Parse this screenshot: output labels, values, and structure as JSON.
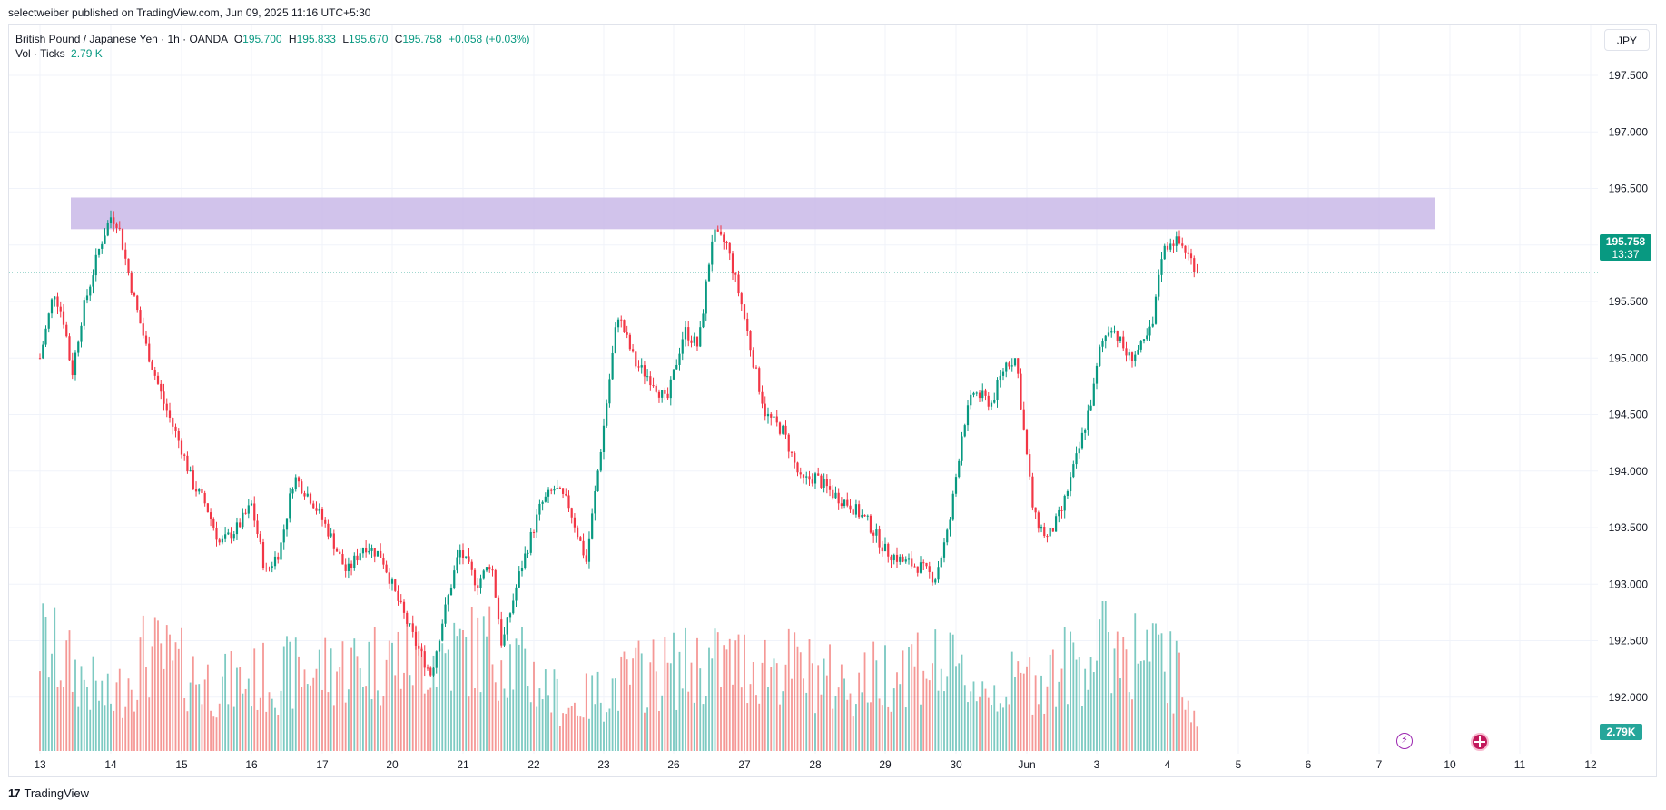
{
  "header": {
    "publish_text": "selectweiber published on TradingView.com, Jun 09, 2025 11:16 UTC+5:30"
  },
  "legend": {
    "symbol": "British Pound / Japanese Yen · 1h · OANDA",
    "o_label": "O",
    "o_value": "195.700",
    "h_label": "H",
    "h_value": "195.833",
    "l_label": "L",
    "l_value": "195.670",
    "c_label": "C",
    "c_value": "195.758",
    "change": "+0.058 (+0.03%)",
    "vol_label": "Vol · Ticks",
    "vol_value": "2.79 K"
  },
  "currency_button": "JPY",
  "price_tag": {
    "price": "195.758",
    "countdown": "13:37"
  },
  "volume_tag": "2.79K",
  "brand": {
    "logo_text": "17",
    "name": "TradingView"
  },
  "colors": {
    "up": "#089981",
    "down": "#f23645",
    "vol_up": "#26a69a",
    "vol_down": "#ef5350",
    "zone": "#c9b8e8"
  },
  "icons": [
    "lightning-event-icon",
    "uk-flag-event-icon"
  ],
  "chart_data": {
    "type": "candlestick",
    "title": "",
    "y_axis": {
      "ticks": [
        192.0,
        192.5,
        193.0,
        193.5,
        194.0,
        194.5,
        195.0,
        195.5,
        196.0,
        196.5,
        197.0,
        197.5
      ],
      "range": [
        191.5,
        197.95
      ]
    },
    "x_axis": {
      "tick_labels": [
        "13",
        "14",
        "15",
        "16",
        "17",
        "20",
        "21",
        "22",
        "23",
        "26",
        "27",
        "28",
        "29",
        "30",
        "Jun",
        "3",
        "4",
        "5",
        "6",
        "7",
        "10",
        "11",
        "12"
      ]
    },
    "resistance_zone": {
      "low": 196.14,
      "high": 196.42,
      "from": "13",
      "to": "10"
    },
    "last_price": 195.758,
    "close_path": [
      {
        "x": 0,
        "y": 195.0
      },
      {
        "x": 0.2,
        "y": 195.6
      },
      {
        "x": 0.35,
        "y": 195.3
      },
      {
        "x": 0.45,
        "y": 194.85
      },
      {
        "x": 0.6,
        "y": 195.4
      },
      {
        "x": 0.85,
        "y": 196.0
      },
      {
        "x": 1.0,
        "y": 196.25
      },
      {
        "x": 1.1,
        "y": 196.2
      },
      {
        "x": 1.3,
        "y": 195.6
      },
      {
        "x": 1.5,
        "y": 195.1
      },
      {
        "x": 1.75,
        "y": 194.6
      },
      {
        "x": 2.0,
        "y": 194.2
      },
      {
        "x": 2.15,
        "y": 193.9
      },
      {
        "x": 2.35,
        "y": 193.7
      },
      {
        "x": 2.55,
        "y": 193.35
      },
      {
        "x": 2.8,
        "y": 193.5
      },
      {
        "x": 3.0,
        "y": 193.7
      },
      {
        "x": 3.2,
        "y": 193.1
      },
      {
        "x": 3.4,
        "y": 193.3
      },
      {
        "x": 3.6,
        "y": 193.95
      },
      {
        "x": 3.85,
        "y": 193.75
      },
      {
        "x": 4.1,
        "y": 193.45
      },
      {
        "x": 4.35,
        "y": 193.1
      },
      {
        "x": 4.6,
        "y": 193.35
      },
      {
        "x": 4.85,
        "y": 193.25
      },
      {
        "x": 5.05,
        "y": 192.9
      },
      {
        "x": 5.35,
        "y": 192.45
      },
      {
        "x": 5.55,
        "y": 192.2
      },
      {
        "x": 5.7,
        "y": 192.65
      },
      {
        "x": 5.95,
        "y": 193.3
      },
      {
        "x": 6.2,
        "y": 193.0
      },
      {
        "x": 6.4,
        "y": 193.2
      },
      {
        "x": 6.55,
        "y": 192.45
      },
      {
        "x": 6.8,
        "y": 193.1
      },
      {
        "x": 7.1,
        "y": 193.7
      },
      {
        "x": 7.3,
        "y": 193.85
      },
      {
        "x": 7.5,
        "y": 193.7
      },
      {
        "x": 7.75,
        "y": 193.2
      },
      {
        "x": 8.0,
        "y": 194.4
      },
      {
        "x": 8.2,
        "y": 195.4
      },
      {
        "x": 8.45,
        "y": 194.95
      },
      {
        "x": 8.7,
        "y": 194.8
      },
      {
        "x": 8.9,
        "y": 194.6
      },
      {
        "x": 9.15,
        "y": 195.25
      },
      {
        "x": 9.35,
        "y": 195.1
      },
      {
        "x": 9.55,
        "y": 196.1
      },
      {
        "x": 9.75,
        "y": 196.0
      },
      {
        "x": 9.95,
        "y": 195.5
      },
      {
        "x": 10.15,
        "y": 194.9
      },
      {
        "x": 10.3,
        "y": 194.5
      },
      {
        "x": 10.55,
        "y": 194.35
      },
      {
        "x": 10.8,
        "y": 193.9
      },
      {
        "x": 11.0,
        "y": 193.95
      },
      {
        "x": 11.25,
        "y": 193.8
      },
      {
        "x": 11.5,
        "y": 193.7
      },
      {
        "x": 11.75,
        "y": 193.55
      },
      {
        "x": 12.0,
        "y": 193.3
      },
      {
        "x": 12.25,
        "y": 193.2
      },
      {
        "x": 12.5,
        "y": 193.15
      },
      {
        "x": 12.7,
        "y": 193.05
      },
      {
        "x": 12.9,
        "y": 193.5
      },
      {
        "x": 13.1,
        "y": 194.4
      },
      {
        "x": 13.25,
        "y": 194.7
      },
      {
        "x": 13.5,
        "y": 194.6
      },
      {
        "x": 13.7,
        "y": 194.95
      },
      {
        "x": 13.85,
        "y": 195.0
      },
      {
        "x": 13.95,
        "y": 194.4
      },
      {
        "x": 14.1,
        "y": 193.6
      },
      {
        "x": 14.3,
        "y": 193.4
      },
      {
        "x": 14.5,
        "y": 193.65
      },
      {
        "x": 14.75,
        "y": 194.2
      },
      {
        "x": 14.95,
        "y": 194.7
      },
      {
        "x": 15.05,
        "y": 195.1
      },
      {
        "x": 15.2,
        "y": 195.3
      },
      {
        "x": 15.45,
        "y": 195.0
      },
      {
        "x": 15.65,
        "y": 195.1
      },
      {
        "x": 15.8,
        "y": 195.3
      },
      {
        "x": 15.9,
        "y": 195.9
      },
      {
        "x": 16.05,
        "y": 196.05
      },
      {
        "x": 16.2,
        "y": 196.0
      },
      {
        "x": 16.3,
        "y": 195.9
      },
      {
        "x": 16.4,
        "y": 195.8
      },
      {
        "x": 16.45,
        "y": 195.76
      }
    ],
    "volume_path": [
      {
        "x": 0,
        "y": 1.0
      },
      {
        "x": 1.0,
        "y": 0.45
      },
      {
        "x": 1.5,
        "y": 0.9
      },
      {
        "x": 2.5,
        "y": 0.6
      },
      {
        "x": 3.5,
        "y": 0.7
      },
      {
        "x": 5.0,
        "y": 0.85
      },
      {
        "x": 6.5,
        "y": 0.95
      },
      {
        "x": 7.5,
        "y": 0.4
      },
      {
        "x": 8.5,
        "y": 0.7
      },
      {
        "x": 9.5,
        "y": 0.8
      },
      {
        "x": 10.5,
        "y": 0.8
      },
      {
        "x": 11.5,
        "y": 0.6
      },
      {
        "x": 12.5,
        "y": 0.85
      },
      {
        "x": 13.5,
        "y": 0.55
      },
      {
        "x": 14.5,
        "y": 0.75
      },
      {
        "x": 15.2,
        "y": 1.0
      },
      {
        "x": 16.0,
        "y": 0.8
      },
      {
        "x": 16.45,
        "y": 0.35
      }
    ]
  }
}
